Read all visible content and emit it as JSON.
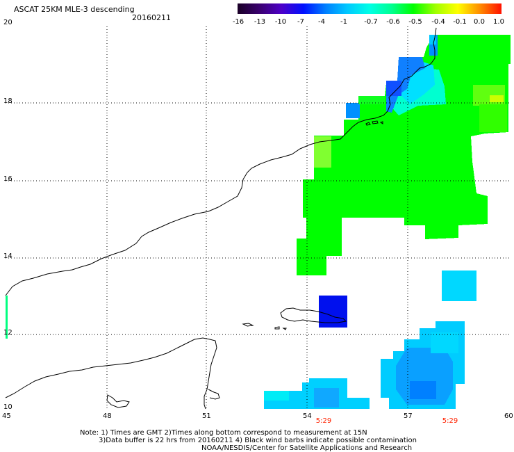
{
  "header": {
    "title": "ASCAT 25KM MLE-3 descending",
    "date": "20160211"
  },
  "colorbar": {
    "labels": [
      "-16",
      "-13",
      "-10",
      "-7",
      "-4",
      "-1",
      "-0.7",
      "-0.6",
      "-0.5",
      "-0.4",
      "-0.1",
      "0.0",
      "1.0"
    ],
    "colors": [
      "#1a0026",
      "#3a0070",
      "#4d00c8",
      "#0010ff",
      "#0080ff",
      "#00c8ff",
      "#00ffe6",
      "#00ff90",
      "#00ff00",
      "#a0ff00",
      "#ffff00",
      "#ff9000",
      "#ff1000"
    ]
  },
  "axes": {
    "lat_labels": [
      "20",
      "18",
      "16",
      "14",
      "12",
      "10"
    ],
    "lon_labels": [
      "45",
      "48",
      "51",
      "54",
      "57",
      "60"
    ]
  },
  "times": [
    "5:29",
    "5:29"
  ],
  "notes": {
    "line1": "Note: 1) Times are GMT 2)Times along bottom correspond to measurement at 15N",
    "line2": "3)Data buffer is 22 hrs from 20160211 4) Black wind barbs indicate possible contamination",
    "line3": "NOAA/NESDIS/Center for Satellite Applications and Research"
  },
  "legend_colors": {
    "green": "#00ff00",
    "yellow_green": "#80ff20",
    "cyan_light": "#00e0ff",
    "sky": "#00c8ff",
    "blue_mid": "#0096ff",
    "deep_blue": "#0010ee"
  }
}
